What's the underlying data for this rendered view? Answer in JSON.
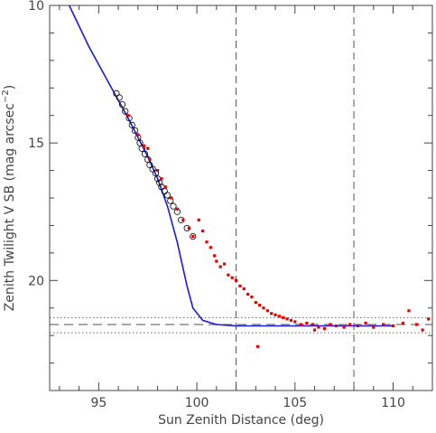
{
  "chart_data": {
    "type": "scatter",
    "xlabel": "Sun Zenith Distance (deg)",
    "ylabel_main": "Zenith Twilight V SB (mag arcsec",
    "ylabel_sup": "−2",
    "ylabel_close": ")",
    "xlim": [
      92.5,
      112
    ],
    "ylim": [
      10,
      24
    ],
    "y_inverted": true,
    "x_ticks": [
      95,
      100,
      105,
      110
    ],
    "y_ticks": [
      10,
      15,
      20
    ],
    "grid": false,
    "colors": {
      "model_line": "#1a1ae6",
      "red_points": "#e60000",
      "open_circles": "#000000",
      "reference_lines": "#555555"
    },
    "vertical_lines": [
      102,
      108
    ],
    "horizontal_reference": {
      "dashed": 21.6,
      "dotted": [
        21.35,
        21.9
      ]
    },
    "series": [
      {
        "kind": "line",
        "points": [
          [
            93.5,
            10
          ],
          [
            94.5,
            11.5
          ],
          [
            95.5,
            12.8
          ],
          [
            96.5,
            14.1
          ],
          [
            97.5,
            15.5
          ],
          [
            98,
            16.3
          ],
          [
            98.5,
            17.3
          ],
          [
            99,
            18.6
          ],
          [
            99.5,
            20.2
          ],
          [
            99.8,
            21.0
          ],
          [
            100.3,
            21.45
          ],
          [
            101,
            21.6
          ],
          [
            102,
            21.65
          ],
          [
            110,
            21.65
          ]
        ]
      },
      {
        "kind": "open-circles",
        "points": [
          [
            95.9,
            13.2
          ],
          [
            96.05,
            13.35
          ],
          [
            96.2,
            13.6
          ],
          [
            96.35,
            13.85
          ],
          [
            96.55,
            14.1
          ],
          [
            96.7,
            14.35
          ],
          [
            96.85,
            14.55
          ],
          [
            97.0,
            14.8
          ],
          [
            97.1,
            15.0
          ],
          [
            97.2,
            15.2
          ],
          [
            97.35,
            15.4
          ],
          [
            97.5,
            15.6
          ],
          [
            97.6,
            15.8
          ],
          [
            97.75,
            15.95
          ],
          [
            97.9,
            16.1
          ],
          [
            98.0,
            16.3
          ],
          [
            98.1,
            16.45
          ],
          [
            98.2,
            16.6
          ],
          [
            98.35,
            16.75
          ],
          [
            98.5,
            16.9
          ],
          [
            98.65,
            17.1
          ],
          [
            98.8,
            17.3
          ],
          [
            99.0,
            17.5
          ],
          [
            99.2,
            17.8
          ],
          [
            99.5,
            18.1
          ],
          [
            99.8,
            18.4
          ]
        ]
      },
      {
        "kind": "red-points",
        "points": [
          [
            96.5,
            14.0
          ],
          [
            97.0,
            14.7
          ],
          [
            97.3,
            15.1
          ],
          [
            97.5,
            15.2
          ],
          [
            97.6,
            15.6
          ],
          [
            98.0,
            16.0
          ],
          [
            98.2,
            16.3
          ],
          [
            98.4,
            16.6
          ],
          [
            98.7,
            17.0
          ],
          [
            99.0,
            17.4
          ],
          [
            99.3,
            17.8
          ],
          [
            99.6,
            18.1
          ],
          [
            99.8,
            18.4
          ],
          [
            100.1,
            17.8
          ],
          [
            100.3,
            18.2
          ],
          [
            100.5,
            18.6
          ],
          [
            100.7,
            18.8
          ],
          [
            100.9,
            19.1
          ],
          [
            101.0,
            19.3
          ],
          [
            101.2,
            19.5
          ],
          [
            101.4,
            19.4
          ],
          [
            101.6,
            19.8
          ],
          [
            101.8,
            19.9
          ],
          [
            102.0,
            20.0
          ],
          [
            102.2,
            20.2
          ],
          [
            102.4,
            20.3
          ],
          [
            102.6,
            20.5
          ],
          [
            102.8,
            20.6
          ],
          [
            103.0,
            20.8
          ],
          [
            103.2,
            20.9
          ],
          [
            103.4,
            21.0
          ],
          [
            103.6,
            21.1
          ],
          [
            103.8,
            21.2
          ],
          [
            104.0,
            21.25
          ],
          [
            104.2,
            21.3
          ],
          [
            104.4,
            21.35
          ],
          [
            104.6,
            21.4
          ],
          [
            104.8,
            21.45
          ],
          [
            105.0,
            21.5
          ],
          [
            105.3,
            21.6
          ],
          [
            105.6,
            21.55
          ],
          [
            105.9,
            21.6
          ],
          [
            106.2,
            21.7
          ],
          [
            106.5,
            21.75
          ],
          [
            106.8,
            21.6
          ],
          [
            107.1,
            21.65
          ],
          [
            107.5,
            21.7
          ],
          [
            107.8,
            21.6
          ],
          [
            108.2,
            21.65
          ],
          [
            108.6,
            21.55
          ],
          [
            109.0,
            21.7
          ],
          [
            109.5,
            21.6
          ],
          [
            110.0,
            21.65
          ],
          [
            110.5,
            21.55
          ],
          [
            110.8,
            21.1
          ],
          [
            111.2,
            21.6
          ],
          [
            111.5,
            21.8
          ],
          [
            111.8,
            21.4
          ],
          [
            103.1,
            22.4
          ],
          [
            106.0,
            21.8
          ]
        ]
      }
    ]
  }
}
